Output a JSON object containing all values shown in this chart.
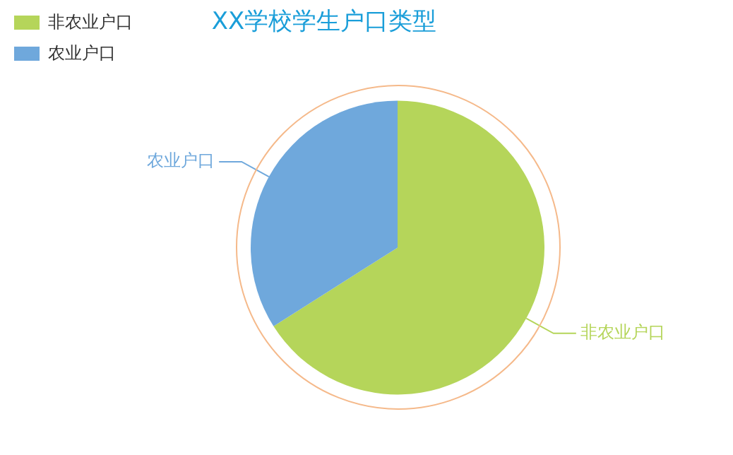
{
  "chart_data": {
    "type": "pie",
    "title": "XX学校学生户口类型",
    "categories": [
      "非农业户口",
      "农业户口"
    ],
    "values": [
      66,
      34
    ],
    "colors": [
      "#b5d55a",
      "#6fa8dc"
    ],
    "legend": "top left"
  }
}
